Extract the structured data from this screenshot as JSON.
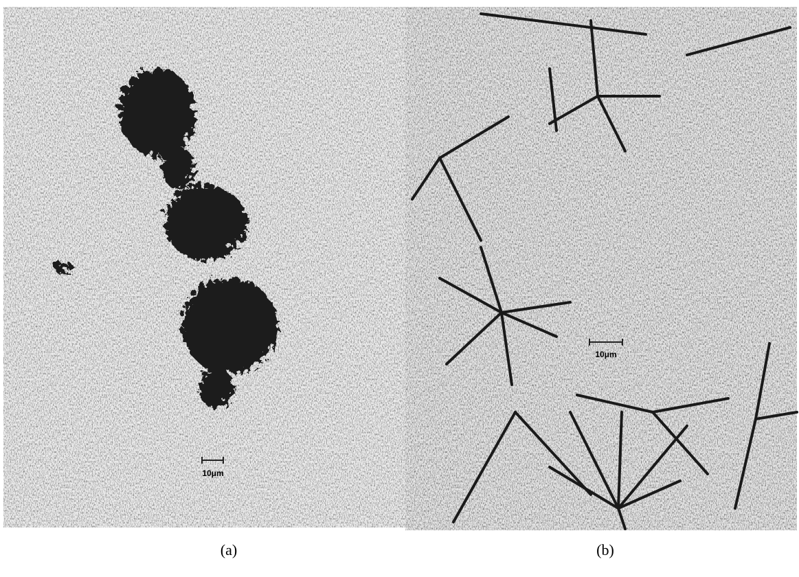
{
  "panels": [
    {
      "label": "(a)",
      "scale_bar": "10μm"
    },
    {
      "label": "(b)",
      "scale_bar": "10μm"
    }
  ]
}
